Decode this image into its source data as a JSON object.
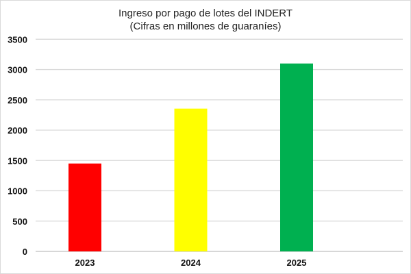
{
  "chart_data": {
    "type": "bar",
    "title": "Ingreso por pago de lotes del INDERT",
    "subtitle": "(Cifras en millones de guaraníes)",
    "xlabel": "",
    "ylabel": "",
    "categories": [
      "2023",
      "2024",
      "2025"
    ],
    "values": [
      1450,
      2355,
      3100
    ],
    "colors": [
      "#ff0000",
      "#ffff00",
      "#00b050"
    ],
    "ylim": [
      0,
      3500
    ],
    "yticks": [
      0,
      500,
      1000,
      1500,
      2000,
      2500,
      3000,
      3500
    ],
    "grid": true,
    "legend": "none"
  }
}
